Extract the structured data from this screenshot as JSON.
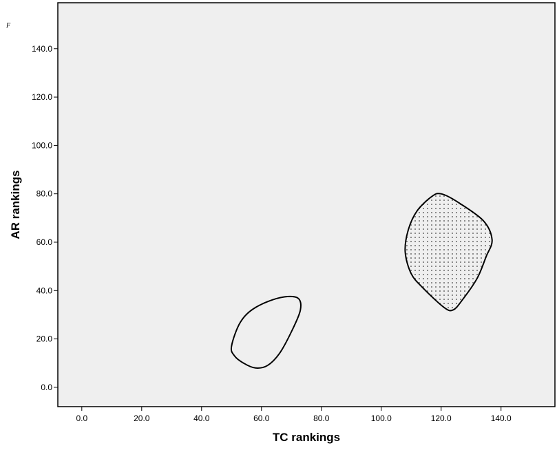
{
  "chart_data": {
    "type": "contour",
    "title": "",
    "xlabel": "TC rankings",
    "ylabel": "AR rankings",
    "corner_mark": "F",
    "xlim": [
      -8,
      158
    ],
    "ylim": [
      -8,
      159
    ],
    "x_ticks": [
      0,
      20,
      40,
      60,
      80,
      100,
      120,
      140
    ],
    "x_tick_labels": [
      "0.0",
      "20.0",
      "40.0",
      "60.0",
      "80.0",
      "100.0",
      "120.0",
      "140.0"
    ],
    "y_ticks": [
      0,
      20,
      40,
      60,
      80,
      100,
      120,
      140
    ],
    "y_tick_labels": [
      "0.0",
      "20.0",
      "40.0",
      "60.0",
      "80.0",
      "100.0",
      "120.0",
      "140.0"
    ],
    "grid": false,
    "colors": {
      "plot_background": "#efefef",
      "outline": "#000000",
      "dots": "#8a8a8a"
    },
    "regions": [
      {
        "fill": "none",
        "boundary": [
          [
            58,
            8
          ],
          [
            62,
            9
          ],
          [
            66,
            14
          ],
          [
            70,
            23
          ],
          [
            73,
            32
          ],
          [
            72,
            37
          ],
          [
            66,
            37
          ],
          [
            58,
            33
          ],
          [
            53,
            27
          ],
          [
            50,
            17
          ],
          [
            51,
            13
          ],
          [
            54,
            10
          ]
        ]
      },
      {
        "fill": "dots",
        "boundary": [
          [
            120,
            80
          ],
          [
            125,
            77
          ],
          [
            134,
            69
          ],
          [
            137,
            61
          ],
          [
            135,
            54
          ],
          [
            132,
            45
          ],
          [
            127,
            36
          ],
          [
            124,
            32
          ],
          [
            121,
            33
          ],
          [
            114,
            41
          ],
          [
            110,
            47
          ],
          [
            108,
            56
          ],
          [
            109,
            65
          ],
          [
            112,
            73
          ],
          [
            117,
            79
          ]
        ]
      }
    ]
  }
}
